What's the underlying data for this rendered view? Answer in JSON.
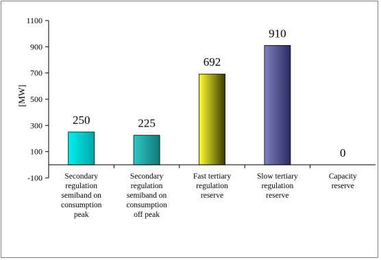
{
  "chart_data": {
    "type": "bar",
    "title": "",
    "xlabel": "",
    "ylabel": "[MW]",
    "ylim": [
      -100,
      1100
    ],
    "yticks": [
      -100,
      100,
      300,
      500,
      700,
      900,
      1100
    ],
    "grid": false,
    "legend": "none",
    "categories": [
      "Secondary\nregulation\nsemiband on\nconsumption\npeak",
      "Secondary\nregulation\nsemiband on\nconsumption\noff peak",
      "Fast tertiary\nregulation\nreserve",
      "Slow tertiary\nregulation\nreserve",
      "Capacity\nreserve"
    ],
    "values": [
      250,
      225,
      692,
      910,
      0
    ],
    "data_labels": [
      "250",
      "225",
      "692",
      "910",
      "0"
    ],
    "bar_colors": [
      [
        "#00f0f0",
        "#00a8a8"
      ],
      [
        "#30c8c8",
        "#107878"
      ],
      [
        "#ffff30",
        "#3a3a00"
      ],
      [
        "#8080c0",
        "#2a2a60"
      ],
      [
        "#808080",
        "#404040"
      ]
    ]
  }
}
